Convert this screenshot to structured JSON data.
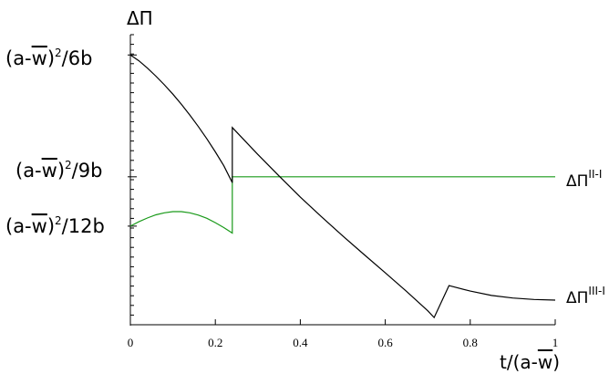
{
  "chart_data": {
    "type": "line",
    "xlabel_main": "t/(a-",
    "xlabel_w": "w",
    "xlabel_close": ")",
    "ylabel": "ΔΠ",
    "xlim": [
      0,
      1
    ],
    "ylim": [
      0,
      1
    ],
    "xticks": [
      "0",
      "0.2",
      "0.4",
      "0.6",
      "0.8",
      "1"
    ],
    "yticks": [
      {
        "value": 0.93,
        "pre": "(a-",
        "w": "w",
        "post": ")",
        "sup": "2",
        "tail": "/6b"
      },
      {
        "value": 0.51,
        "pre": "(a-",
        "w": "w",
        "post": ")",
        "sup": "2",
        "tail": "/9b"
      },
      {
        "value": 0.34,
        "pre": "(a-",
        "w": "w",
        "post": ")",
        "sup": "2",
        "tail": "/12b"
      }
    ],
    "series": [
      {
        "name_main": "ΔΠ",
        "name_sup": "II-I",
        "color": "#1a9a1a",
        "points": [
          [
            0,
            0.34
          ],
          [
            0.02,
            0.355
          ],
          [
            0.04,
            0.368
          ],
          [
            0.06,
            0.379
          ],
          [
            0.08,
            0.386
          ],
          [
            0.1,
            0.39
          ],
          [
            0.12,
            0.39
          ],
          [
            0.14,
            0.386
          ],
          [
            0.16,
            0.378
          ],
          [
            0.18,
            0.367
          ],
          [
            0.2,
            0.352
          ],
          [
            0.22,
            0.335
          ],
          [
            0.24,
            0.316
          ],
          [
            0.24,
            0.51
          ],
          [
            1,
            0.51
          ]
        ]
      },
      {
        "name_main": "ΔΠ",
        "name_sup": "III-I",
        "color": "#000000",
        "points": [
          [
            0,
            0.93
          ],
          [
            0.02,
            0.91
          ],
          [
            0.04,
            0.885
          ],
          [
            0.06,
            0.857
          ],
          [
            0.08,
            0.827
          ],
          [
            0.1,
            0.795
          ],
          [
            0.12,
            0.76
          ],
          [
            0.14,
            0.723
          ],
          [
            0.16,
            0.683
          ],
          [
            0.18,
            0.641
          ],
          [
            0.2,
            0.596
          ],
          [
            0.22,
            0.548
          ],
          [
            0.24,
            0.49
          ],
          [
            0.24,
            0.68
          ],
          [
            0.3,
            0.587
          ],
          [
            0.35,
            0.513
          ],
          [
            0.4,
            0.44
          ],
          [
            0.45,
            0.372
          ],
          [
            0.5,
            0.306
          ],
          [
            0.55,
            0.242
          ],
          [
            0.6,
            0.179
          ],
          [
            0.65,
            0.115
          ],
          [
            0.7,
            0.048
          ],
          [
            0.715,
            0.025
          ],
          [
            0.75,
            0.135
          ],
          [
            0.8,
            0.116
          ],
          [
            0.85,
            0.101
          ],
          [
            0.9,
            0.092
          ],
          [
            0.95,
            0.087
          ],
          [
            1,
            0.085
          ]
        ]
      }
    ]
  }
}
